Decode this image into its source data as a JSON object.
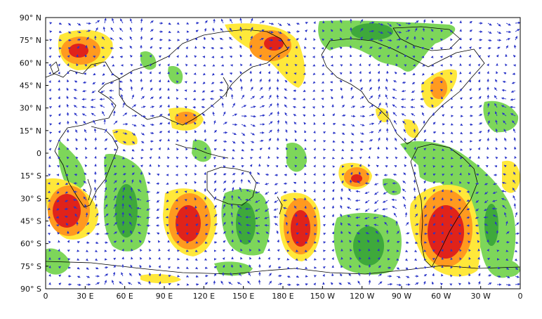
{
  "map": {
    "projection": "equirectangular",
    "longitude_range": [
      0,
      360
    ],
    "latitude_range": [
      -90,
      90
    ],
    "x_tick_labels": [
      "0",
      "30 E",
      "60 E",
      "90 E",
      "120 E",
      "150 E",
      "180 E",
      "150 W",
      "120 W",
      "90 W",
      "60 W",
      "30 W",
      "0"
    ],
    "y_tick_labels": [
      "90 N",
      "75 N",
      "60 N",
      "45 N",
      "30 N",
      "15 N",
      "0",
      "15 S",
      "30 S",
      "45 S",
      "60 S",
      "75 S",
      "90 S"
    ],
    "degree_mark": "°",
    "colors": {
      "negative_shading": "#7dd65a",
      "negative_strong": "#2e9e33",
      "positive_light": "#ffe83a",
      "positive_mid": "#ff9a1f",
      "positive_strong": "#e0231a",
      "vectors": "#2a35c8",
      "coastline": "#000000"
    },
    "background": "white",
    "vector_field": true,
    "coastlines": true
  }
}
